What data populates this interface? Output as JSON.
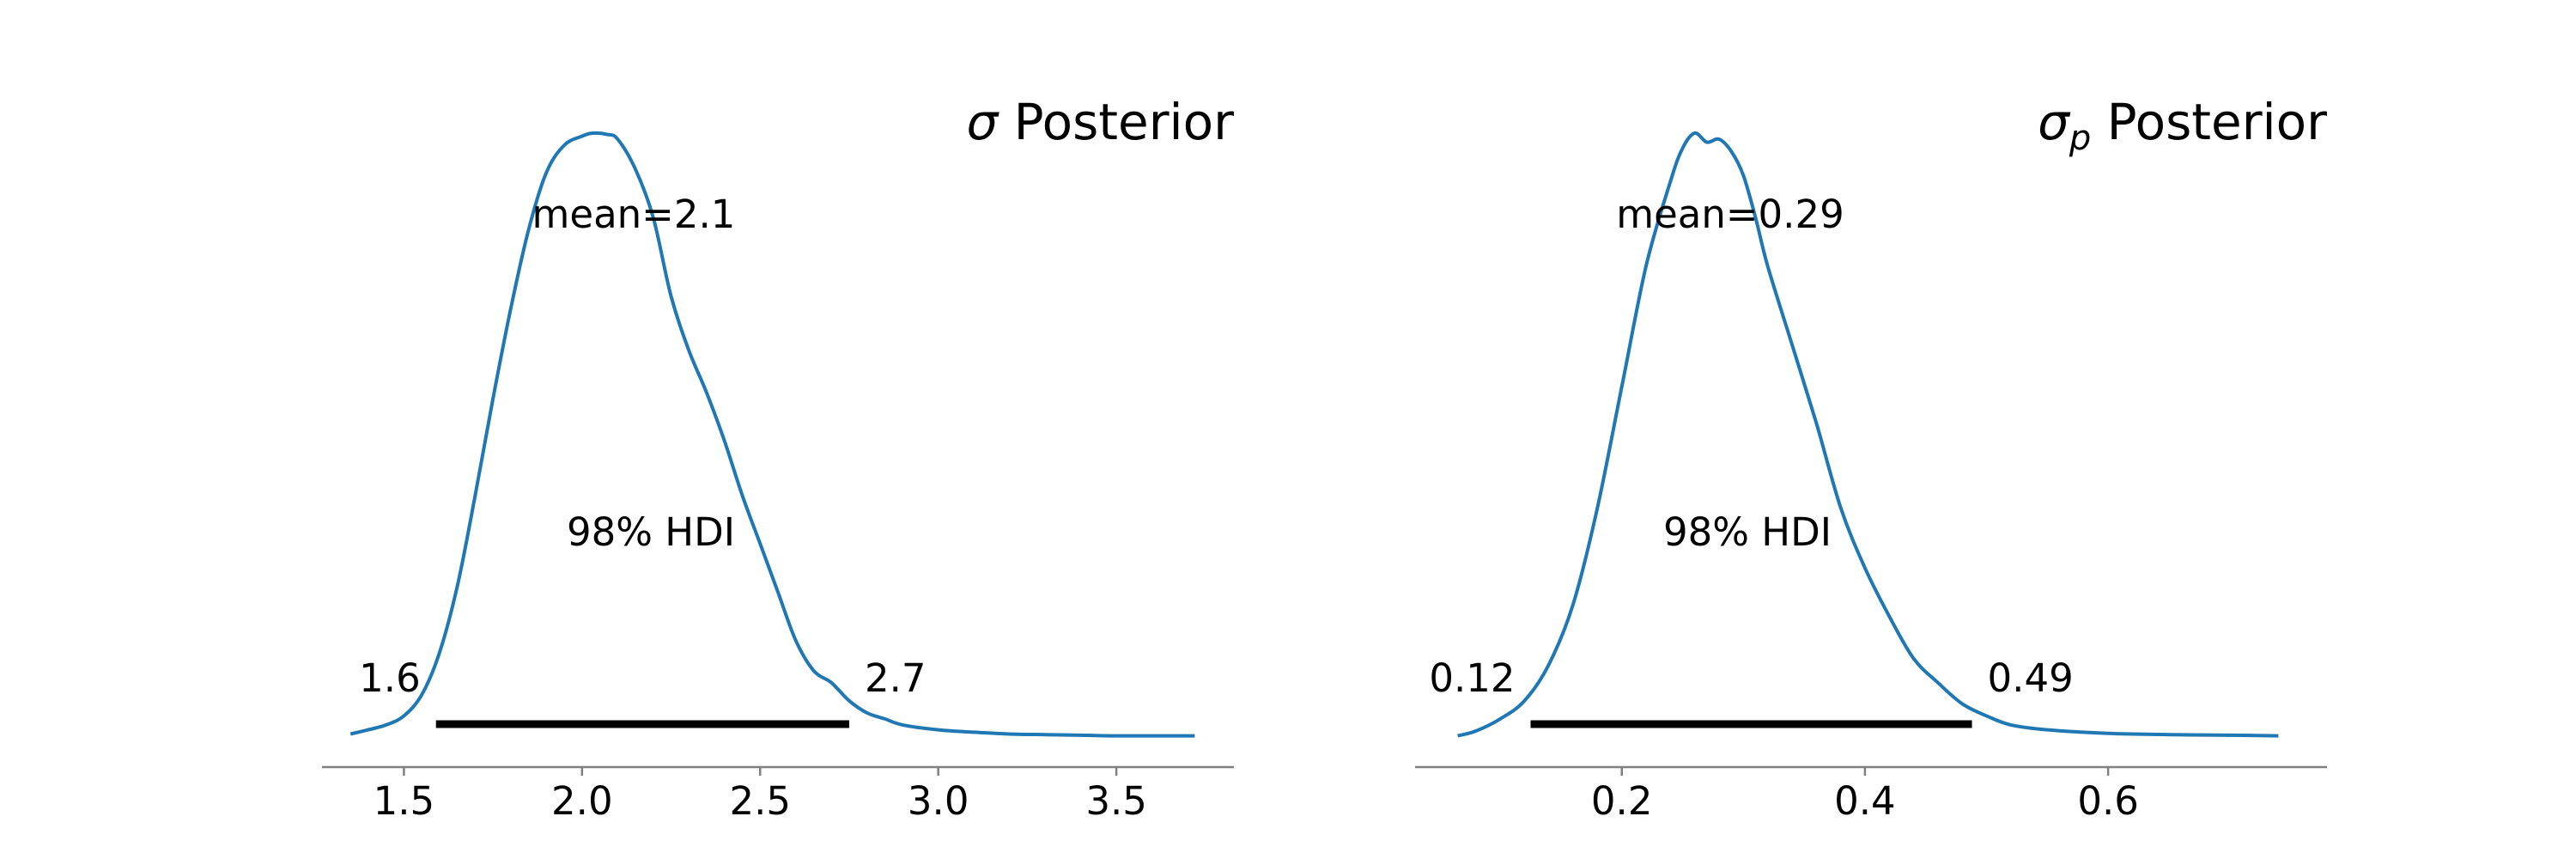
{
  "chart_data": [
    {
      "type": "area",
      "title_symbol": "σ",
      "title_subscript": "",
      "title_rest": " Posterior",
      "mean_label": "mean=2.1",
      "hdi_label": "98% HDI",
      "hdi_low_label": "1.6",
      "hdi_high_label": "2.7",
      "hdi": [
        1.59,
        2.75
      ],
      "xlim": [
        1.27,
        3.83
      ],
      "ylim": [
        0,
        1.0
      ],
      "xticks": [
        1.5,
        2.0,
        2.5,
        3.0,
        3.5
      ],
      "xtick_labels": [
        "1.5",
        "2.0",
        "2.5",
        "3.0",
        "3.5"
      ],
      "line_color": "#1f77b4",
      "hdi_color": "#000000",
      "density": {
        "x": [
          1.35,
          1.4,
          1.45,
          1.5,
          1.55,
          1.6,
          1.65,
          1.7,
          1.75,
          1.8,
          1.85,
          1.9,
          1.95,
          2.0,
          2.03,
          2.07,
          2.1,
          2.15,
          2.2,
          2.25,
          2.3,
          2.35,
          2.4,
          2.45,
          2.5,
          2.55,
          2.6,
          2.65,
          2.7,
          2.75,
          2.8,
          2.85,
          2.9,
          3.0,
          3.1,
          3.2,
          3.3,
          3.4,
          3.5,
          3.6,
          3.72
        ],
        "y": [
          0.005,
          0.012,
          0.02,
          0.035,
          0.07,
          0.14,
          0.25,
          0.4,
          0.56,
          0.71,
          0.84,
          0.935,
          0.98,
          0.995,
          1.0,
          0.998,
          0.99,
          0.94,
          0.86,
          0.73,
          0.64,
          0.57,
          0.49,
          0.4,
          0.32,
          0.24,
          0.16,
          0.11,
          0.09,
          0.06,
          0.04,
          0.03,
          0.02,
          0.012,
          0.008,
          0.005,
          0.004,
          0.003,
          0.002,
          0.002,
          0.002
        ]
      }
    },
    {
      "type": "area",
      "title_symbol": "σ",
      "title_subscript": "p",
      "title_rest": " Posterior",
      "mean_label": "mean=0.29",
      "hdi_label": "98% HDI",
      "hdi_low_label": "0.12",
      "hdi_high_label": "0.49",
      "hdi": [
        0.125,
        0.488
      ],
      "xlim": [
        0.03,
        0.78
      ],
      "ylim": [
        0,
        1.0
      ],
      "xticks": [
        0.2,
        0.4,
        0.6
      ],
      "xtick_labels": [
        "0.2",
        "0.4",
        "0.6"
      ],
      "line_color": "#1f77b4",
      "hdi_color": "#000000",
      "density": {
        "x": [
          0.065,
          0.08,
          0.1,
          0.12,
          0.14,
          0.16,
          0.18,
          0.2,
          0.22,
          0.24,
          0.25,
          0.26,
          0.27,
          0.28,
          0.29,
          0.3,
          0.31,
          0.32,
          0.34,
          0.36,
          0.38,
          0.4,
          0.42,
          0.44,
          0.46,
          0.48,
          0.5,
          0.52,
          0.55,
          0.6,
          0.65,
          0.7,
          0.74
        ],
        "y": [
          0.002,
          0.01,
          0.03,
          0.06,
          0.12,
          0.22,
          0.38,
          0.58,
          0.78,
          0.92,
          0.975,
          1.0,
          0.985,
          0.99,
          0.97,
          0.93,
          0.86,
          0.78,
          0.65,
          0.52,
          0.38,
          0.28,
          0.2,
          0.13,
          0.09,
          0.055,
          0.035,
          0.02,
          0.012,
          0.006,
          0.004,
          0.003,
          0.002
        ]
      }
    }
  ]
}
